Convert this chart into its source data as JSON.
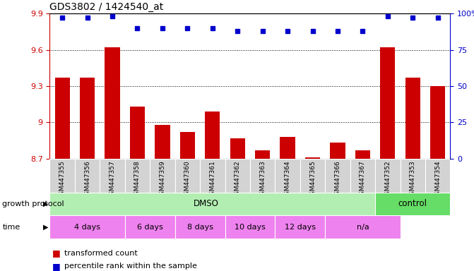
{
  "title": "GDS3802 / 1424540_at",
  "samples": [
    "GSM447355",
    "GSM447356",
    "GSM447357",
    "GSM447358",
    "GSM447359",
    "GSM447360",
    "GSM447361",
    "GSM447362",
    "GSM447363",
    "GSM447364",
    "GSM447365",
    "GSM447366",
    "GSM447367",
    "GSM447352",
    "GSM447353",
    "GSM447354"
  ],
  "bar_values": [
    9.37,
    9.37,
    9.62,
    9.13,
    8.98,
    8.92,
    9.09,
    8.87,
    8.77,
    8.88,
    8.71,
    8.83,
    8.77,
    9.62,
    9.37,
    9.3
  ],
  "dot_values": [
    97,
    97,
    98,
    90,
    90,
    90,
    90,
    88,
    88,
    88,
    88,
    88,
    88,
    98,
    97,
    97
  ],
  "ylim_left": [
    8.7,
    9.9
  ],
  "ylim_right": [
    0,
    100
  ],
  "yticks_left": [
    8.7,
    9.0,
    9.3,
    9.6,
    9.9
  ],
  "yticks_left_labels": [
    "8.7",
    "9",
    "9.3",
    "9.6",
    "9.9"
  ],
  "yticks_right": [
    0,
    25,
    50,
    75,
    100
  ],
  "yticks_right_labels": [
    "0",
    "25",
    "50",
    "75",
    "100%"
  ],
  "bar_color": "#cc0000",
  "dot_color": "#0000cc",
  "grid_color": "#000000",
  "xticklabel_bg": "#d3d3d3",
  "growth_protocol_label": "growth protocol",
  "growth_protocol_dmso": "DMSO",
  "growth_protocol_control": "control",
  "growth_protocol_dmso_color": "#b2eeb2",
  "growth_protocol_control_color": "#66dd66",
  "time_label": "time",
  "time_periods": [
    "4 days",
    "6 days",
    "8 days",
    "10 days",
    "12 days",
    "n/a"
  ],
  "time_period_cols": [
    3,
    2,
    2,
    2,
    2,
    3
  ],
  "time_color": "#ee82ee",
  "legend_bar_label": "transformed count",
  "legend_dot_label": "percentile rank within the sample",
  "title_color": "#000000",
  "left_axis_color": "#cc0000",
  "right_axis_color": "#0000cc",
  "bg_color": "#ffffff"
}
